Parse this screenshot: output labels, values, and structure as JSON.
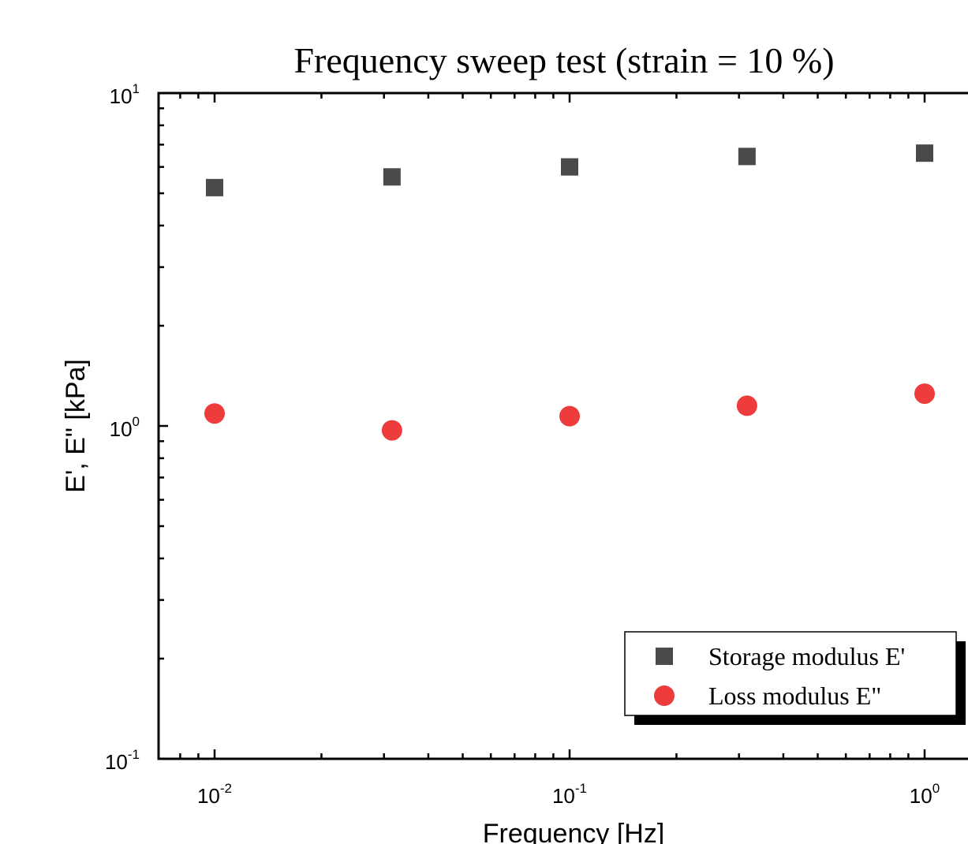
{
  "chart_data": {
    "type": "scatter",
    "title": "Frequency sweep test (strain = 10 %)",
    "xlabel": "Frequency [Hz]",
    "ylabel": "E', E\" [kPa]",
    "xscale": "log",
    "yscale": "log",
    "xlim": [
      0.007,
      1.5
    ],
    "ylim": [
      0.1,
      10
    ],
    "x_ticks": [
      {
        "base": "10",
        "exp": "-2",
        "value": 0.01
      },
      {
        "base": "10",
        "exp": "-1",
        "value": 0.1
      },
      {
        "base": "10",
        "exp": "0",
        "value": 1
      }
    ],
    "y_ticks": [
      {
        "base": "10",
        "exp": "1",
        "value": 10
      },
      {
        "base": "10",
        "exp": "0",
        "value": 1
      },
      {
        "base": "10",
        "exp": "-1",
        "value": 0.1
      }
    ],
    "grid": false,
    "legend_position": "bottom-right",
    "series": [
      {
        "name": "Storage modulus E'",
        "marker": "square",
        "color": "#4a4a4a",
        "x": [
          0.01,
          0.0316,
          0.1,
          0.316,
          1.0
        ],
        "y": [
          5.2,
          5.6,
          6.0,
          6.45,
          6.6
        ]
      },
      {
        "name": "Loss modulus E\"",
        "marker": "circle",
        "color": "#ee3b3b",
        "x": [
          0.01,
          0.0316,
          0.1,
          0.316,
          1.0
        ],
        "y": [
          1.09,
          0.97,
          1.07,
          1.15,
          1.25
        ]
      }
    ]
  }
}
